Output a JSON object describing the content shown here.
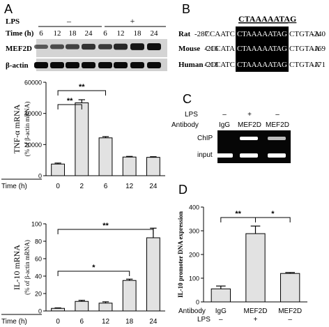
{
  "panels": {
    "A": "A",
    "B": "B",
    "C": "C",
    "D": "D"
  },
  "blot_a": {
    "lps_label": "LPS",
    "lps_minus": "–",
    "lps_plus": "+",
    "time_label": "Time (h)",
    "times": [
      "6",
      "12",
      "18",
      "24",
      "6",
      "12",
      "18",
      "24"
    ],
    "rows": [
      "MEF2D",
      "β-actin"
    ]
  },
  "seq_b": {
    "motif": "CTAAAAATAG",
    "rows": [
      {
        "species": "Rat",
        "start": "-287",
        "left": "CCAATC",
        "core": "CTAAAAATAG",
        "right": "CTGTAA",
        "end": "-240"
      },
      {
        "species": "Mouse",
        "start": "-216",
        "left": "CCCATA",
        "core": "CTAAAAATAG",
        "right": "CTGTAA",
        "end": "-169"
      },
      {
        "species": "Human",
        "start": "-218",
        "left": "CCCATC",
        "core": "CTAAAAATAG",
        "right": "CTGTAA",
        "end": "-171"
      }
    ]
  },
  "gel_c": {
    "lps_label": "LPS",
    "antibody_label": "Antibody",
    "lps_values": [
      "–",
      "+",
      "–"
    ],
    "antibodies": [
      "IgG",
      "MEF2D",
      "MEF2D"
    ],
    "rows": [
      "ChIP",
      "input"
    ]
  },
  "chart_data": [
    {
      "id": "tnf",
      "type": "bar",
      "categories": [
        "0",
        "2",
        "6",
        "12",
        "24"
      ],
      "values": [
        7500,
        46800,
        24300,
        12000,
        11800
      ],
      "errors": [
        600,
        2000,
        800,
        400,
        400
      ],
      "ylim": [
        0,
        60000
      ],
      "yticks": [
        "0",
        "20000",
        "40000",
        "60000"
      ],
      "ylabel": "TNF-α mRNA",
      "ylabel2": "(% of β-actin mRNA)",
      "xlabel": "Time (h)",
      "significance": [
        {
          "from": 0,
          "to": 1,
          "label": "**"
        },
        {
          "from": 0,
          "to": 2,
          "label": "**"
        }
      ]
    },
    {
      "id": "il10",
      "type": "bar",
      "categories": [
        "0",
        "6",
        "12",
        "18",
        "24"
      ],
      "values": [
        3,
        11,
        9,
        35,
        84
      ],
      "errors": [
        0.5,
        1.2,
        1.5,
        1.5,
        11
      ],
      "ylim": [
        0,
        100
      ],
      "yticks": [
        "0",
        "20",
        "40",
        "60",
        "80",
        "100"
      ],
      "ylabel": "IL-10 mRNA",
      "ylabel2": "(% of β-actin mRNA)",
      "xlabel": "Time (h)",
      "significance": [
        {
          "from": 0,
          "to": 4,
          "label": "**"
        },
        {
          "from": 0,
          "to": 3,
          "label": "*"
        }
      ]
    },
    {
      "id": "chip",
      "type": "bar",
      "categories": [
        "IgG",
        "MEF2D",
        "MEF2D"
      ],
      "lps": [
        "–",
        "+",
        "–"
      ],
      "row_labels": [
        "Antibody",
        "LPS"
      ],
      "values": [
        55,
        288,
        120
      ],
      "errors": [
        12,
        32,
        4
      ],
      "ylim": [
        0,
        400
      ],
      "yticks": [
        "0",
        "100",
        "200",
        "300",
        "400"
      ],
      "ylabel": "IL-10 promoter DNA expression",
      "significance": [
        {
          "from": 0,
          "to": 1,
          "label": "**"
        },
        {
          "from": 1,
          "to": 2,
          "label": "*"
        }
      ]
    }
  ]
}
